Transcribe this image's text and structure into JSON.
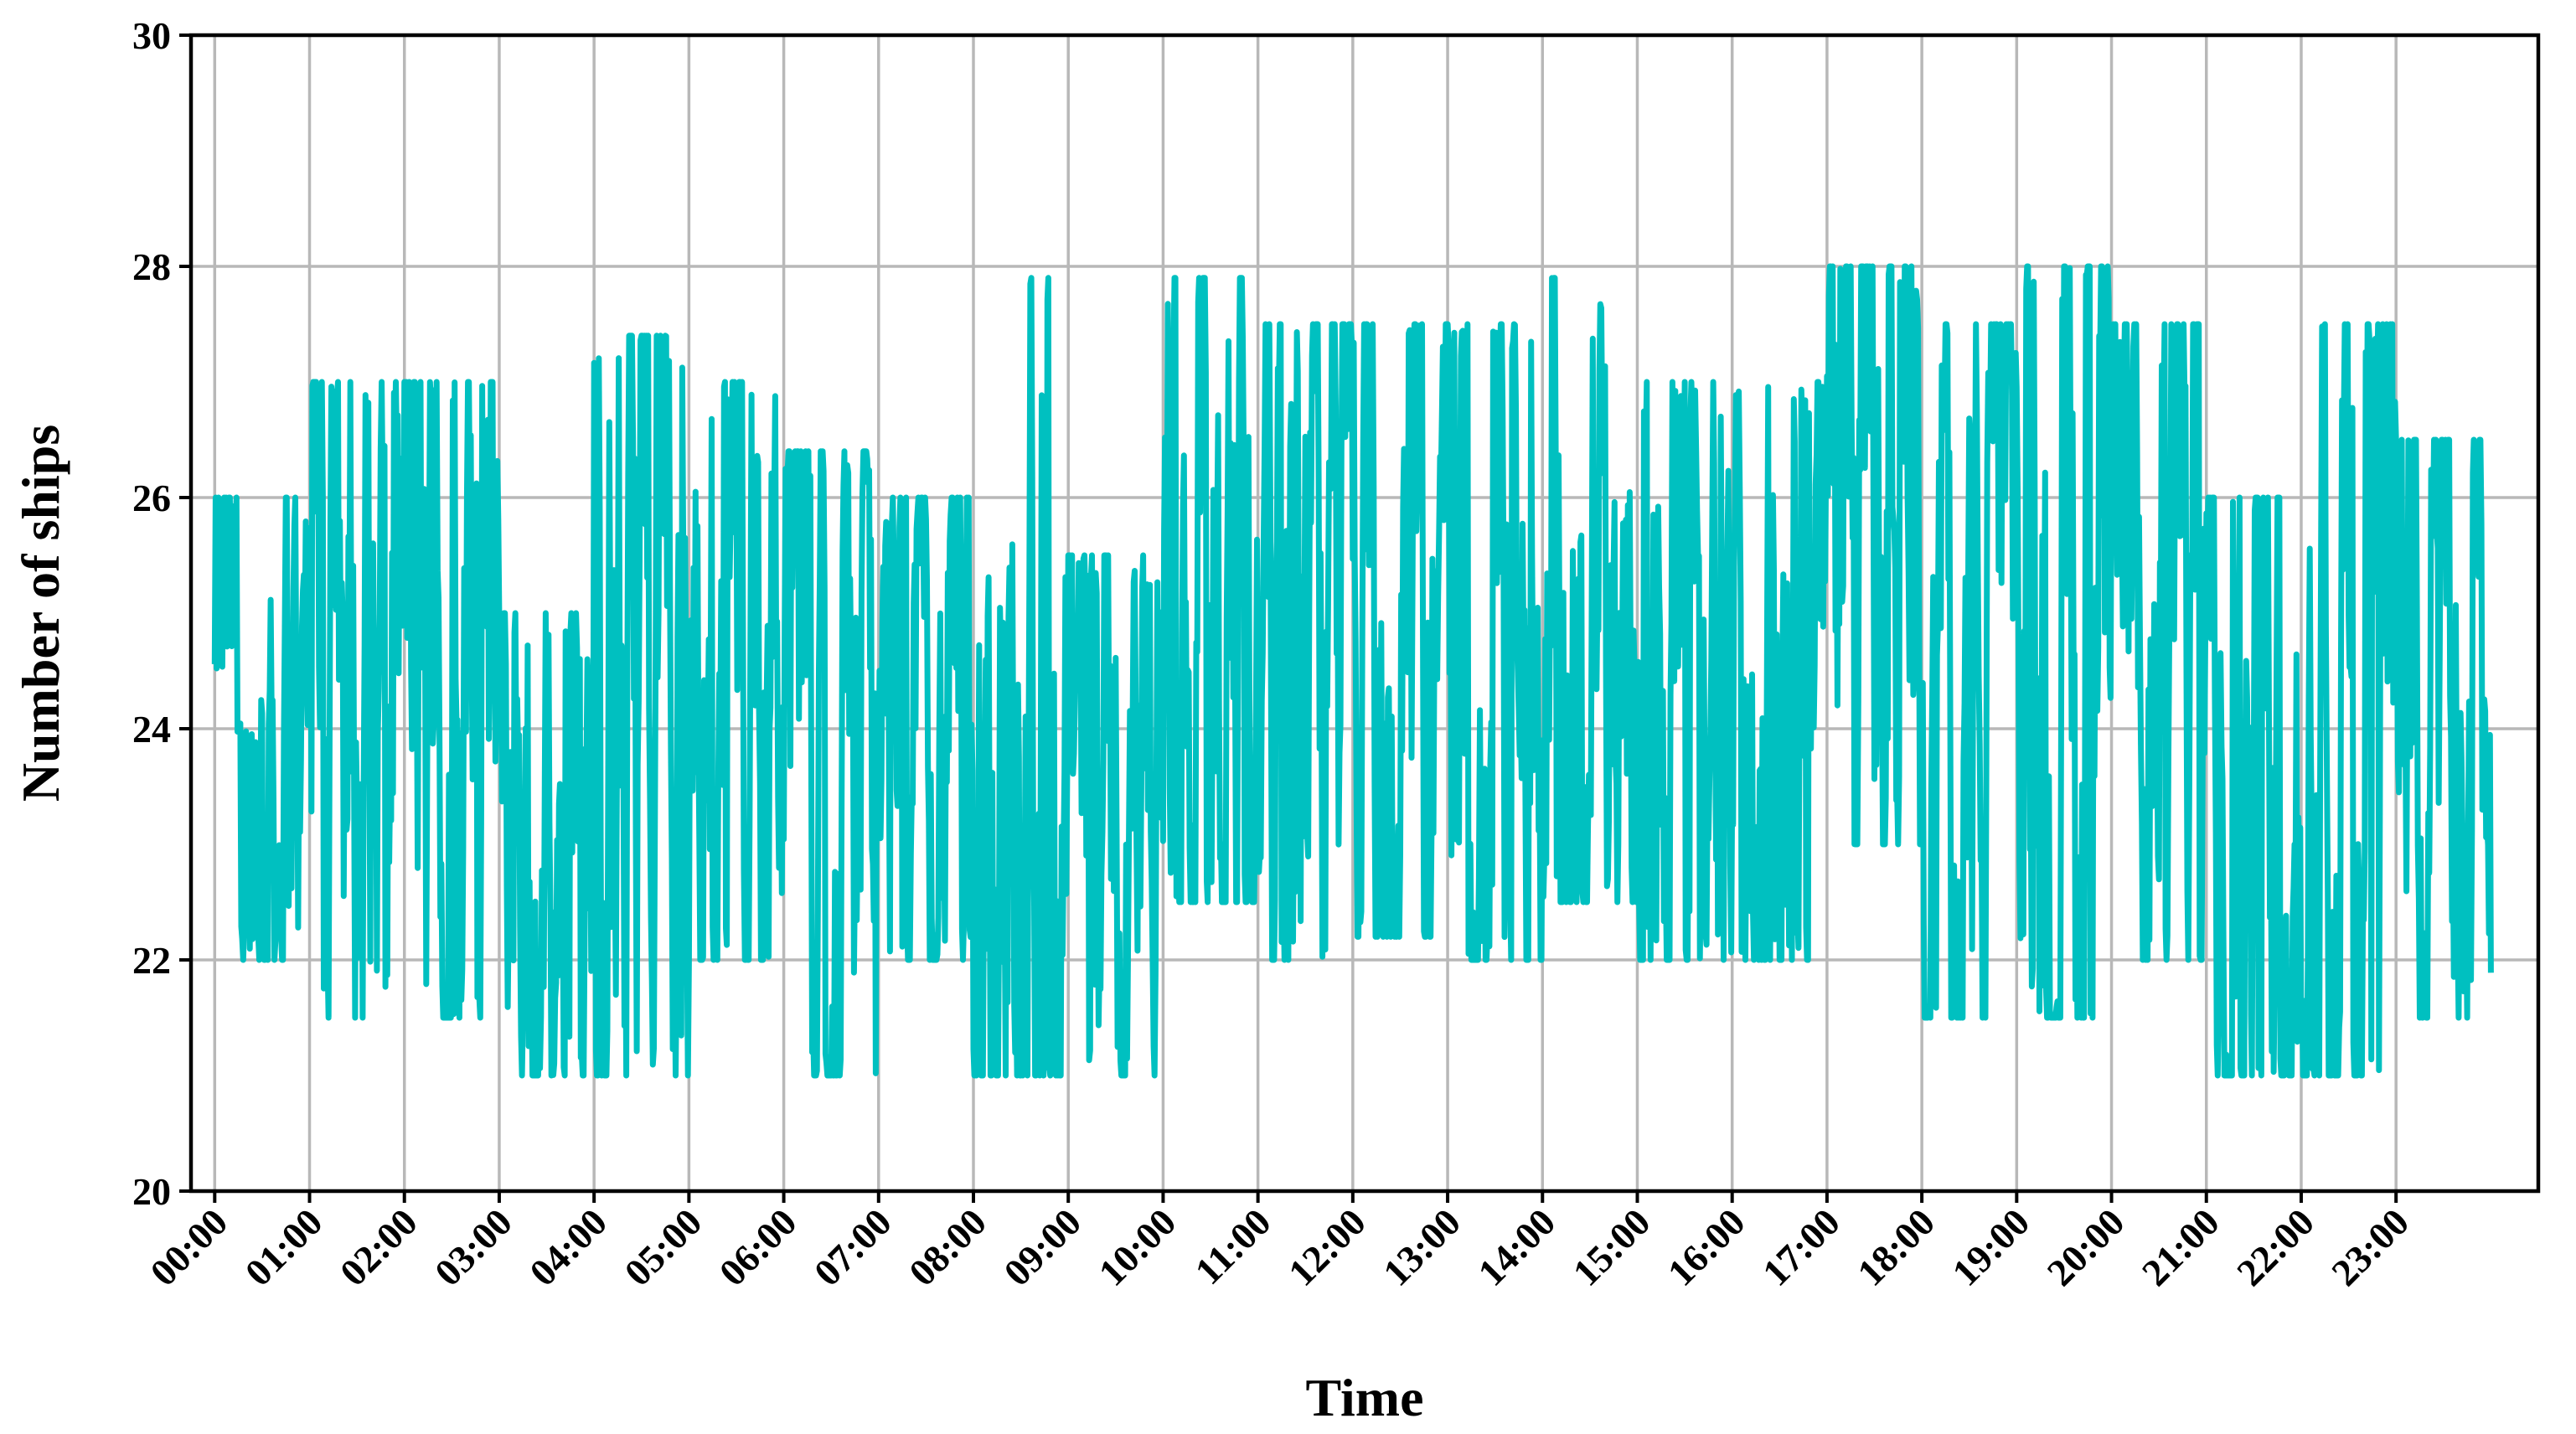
{
  "chart_data": {
    "type": "line",
    "xlabel": "Time",
    "ylabel": "Number of ships",
    "ylim": [
      20,
      30
    ],
    "xlim": [
      -0.25,
      24.5
    ],
    "yticks": [
      20,
      22,
      24,
      26,
      28,
      30
    ],
    "xticks": [
      "00:00",
      "01:00",
      "02:00",
      "03:00",
      "04:00",
      "05:00",
      "06:00",
      "07:00",
      "08:00",
      "09:00",
      "10:00",
      "11:00",
      "12:00",
      "13:00",
      "14:00",
      "15:00",
      "16:00",
      "17:00",
      "18:00",
      "19:00",
      "20:00",
      "21:00",
      "22:00",
      "23:00"
    ],
    "grid": true,
    "legend": "none",
    "series_color": "#00C0C0",
    "series": [
      {
        "x_start": 0.0,
        "x_end": 24.0,
        "hourly_envelope": [
          {
            "hour": "00:00",
            "min": 22.0,
            "max": 26.0
          },
          {
            "hour": "01:00",
            "min": 21.5,
            "max": 27.0
          },
          {
            "hour": "02:00",
            "min": 21.5,
            "max": 27.0
          },
          {
            "hour": "03:00",
            "min": 21.0,
            "max": 25.0
          },
          {
            "hour": "04:00",
            "min": 21.0,
            "max": 27.4
          },
          {
            "hour": "05:00",
            "min": 22.0,
            "max": 27.0
          },
          {
            "hour": "06:00",
            "min": 21.0,
            "max": 26.4
          },
          {
            "hour": "07:00",
            "min": 22.0,
            "max": 26.0
          },
          {
            "hour": "08:00",
            "min": 21.0,
            "max": 27.9
          },
          {
            "hour": "09:00",
            "min": 21.0,
            "max": 25.5
          },
          {
            "hour": "10:00",
            "min": 22.5,
            "max": 27.9
          },
          {
            "hour": "11:00",
            "min": 22.0,
            "max": 27.5
          },
          {
            "hour": "12:00",
            "min": 22.2,
            "max": 27.5
          },
          {
            "hour": "13:00",
            "min": 22.0,
            "max": 27.5
          },
          {
            "hour": "14:00",
            "min": 22.5,
            "max": 27.9
          },
          {
            "hour": "15:00",
            "min": 22.0,
            "max": 27.0
          },
          {
            "hour": "16:00",
            "min": 22.0,
            "max": 27.0
          },
          {
            "hour": "17:00",
            "min": 23.0,
            "max": 28.0
          },
          {
            "hour": "18:00",
            "min": 21.5,
            "max": 27.5
          },
          {
            "hour": "19:00",
            "min": 21.5,
            "max": 28.0
          },
          {
            "hour": "20:00",
            "min": 22.0,
            "max": 27.5
          },
          {
            "hour": "21:00",
            "min": 21.0,
            "max": 26.0
          },
          {
            "hour": "22:00",
            "min": 21.0,
            "max": 27.5
          },
          {
            "hour": "23:00",
            "min": 21.5,
            "max": 26.5
          }
        ]
      }
    ]
  }
}
